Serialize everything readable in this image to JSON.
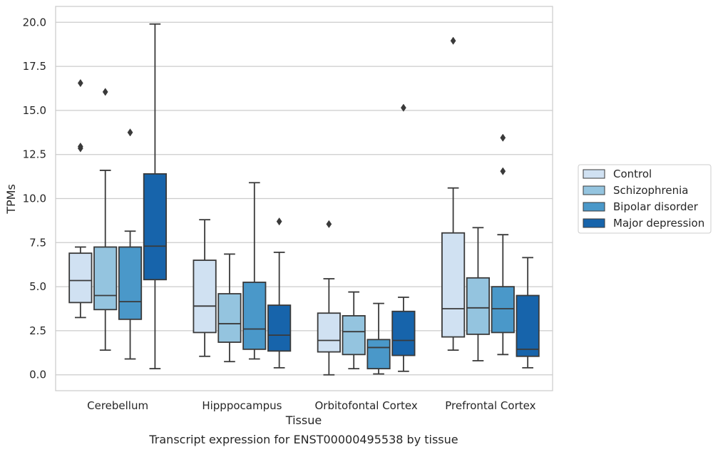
{
  "chart_data": {
    "type": "boxplot",
    "caption": "Transcript expression for ENST00000495538 by tissue",
    "xlabel": "Tissue",
    "ylabel": "TPMs",
    "ylim": [
      -0.9,
      20.9
    ],
    "yticks": [
      0.0,
      2.5,
      5.0,
      7.5,
      10.0,
      12.5,
      15.0,
      17.5,
      20.0
    ],
    "ytick_labels": [
      "0.0",
      "2.5",
      "5.0",
      "7.5",
      "10.0",
      "12.5",
      "15.0",
      "17.5",
      "20.0"
    ],
    "grid": "horizontal",
    "legend_position": "right",
    "categories": [
      "Cerebellum",
      "Hipppocampus",
      "Orbitofontal Cortex",
      "Prefrontal Cortex"
    ],
    "series": [
      {
        "name": "Control",
        "color": "#d0e1f2",
        "boxes": [
          {
            "whislo": 3.25,
            "q1": 4.1,
            "med": 5.35,
            "q3": 6.9,
            "whishi": 7.25,
            "fliers": [
              12.85,
              12.95,
              16.55
            ]
          },
          {
            "whislo": 1.05,
            "q1": 2.4,
            "med": 3.9,
            "q3": 6.5,
            "whishi": 8.8,
            "fliers": []
          },
          {
            "whislo": 0.0,
            "q1": 1.3,
            "med": 1.95,
            "q3": 3.5,
            "whishi": 5.45,
            "fliers": [
              8.55
            ]
          },
          {
            "whislo": 1.4,
            "q1": 2.15,
            "med": 3.75,
            "q3": 8.05,
            "whishi": 10.6,
            "fliers": [
              18.95
            ]
          }
        ]
      },
      {
        "name": "Schizophrenia",
        "color": "#94c4df",
        "boxes": [
          {
            "whislo": 1.4,
            "q1": 3.7,
            "med": 4.5,
            "q3": 7.25,
            "whishi": 11.6,
            "fliers": [
              16.05
            ]
          },
          {
            "whislo": 0.75,
            "q1": 1.85,
            "med": 2.9,
            "q3": 4.6,
            "whishi": 6.85,
            "fliers": []
          },
          {
            "whislo": 0.35,
            "q1": 1.15,
            "med": 2.45,
            "q3": 3.35,
            "whishi": 4.7,
            "fliers": []
          },
          {
            "whislo": 0.8,
            "q1": 2.3,
            "med": 3.8,
            "q3": 5.5,
            "whishi": 8.35,
            "fliers": []
          }
        ]
      },
      {
        "name": "Bipolar disorder",
        "color": "#4a98c9",
        "boxes": [
          {
            "whislo": 0.9,
            "q1": 3.15,
            "med": 4.15,
            "q3": 7.25,
            "whishi": 8.15,
            "fliers": [
              13.75
            ]
          },
          {
            "whislo": 0.9,
            "q1": 1.45,
            "med": 2.6,
            "q3": 5.25,
            "whishi": 10.9,
            "fliers": []
          },
          {
            "whislo": 0.05,
            "q1": 0.35,
            "med": 1.55,
            "q3": 2.0,
            "whishi": 4.05,
            "fliers": []
          },
          {
            "whislo": 1.15,
            "q1": 2.4,
            "med": 3.75,
            "q3": 5.0,
            "whishi": 7.95,
            "fliers": [
              11.55,
              13.45
            ]
          }
        ]
      },
      {
        "name": "Major depression",
        "color": "#1764ab",
        "boxes": [
          {
            "whislo": 0.35,
            "q1": 5.4,
            "med": 7.3,
            "q3": 11.4,
            "whishi": 19.9,
            "fliers": []
          },
          {
            "whislo": 0.4,
            "q1": 1.35,
            "med": 2.25,
            "q3": 3.95,
            "whishi": 6.95,
            "fliers": [
              8.7
            ]
          },
          {
            "whislo": 0.2,
            "q1": 1.1,
            "med": 1.95,
            "q3": 3.6,
            "whishi": 4.4,
            "fliers": [
              15.15
            ]
          },
          {
            "whislo": 0.4,
            "q1": 1.05,
            "med": 1.45,
            "q3": 4.5,
            "whishi": 6.65,
            "fliers": []
          }
        ]
      }
    ]
  }
}
